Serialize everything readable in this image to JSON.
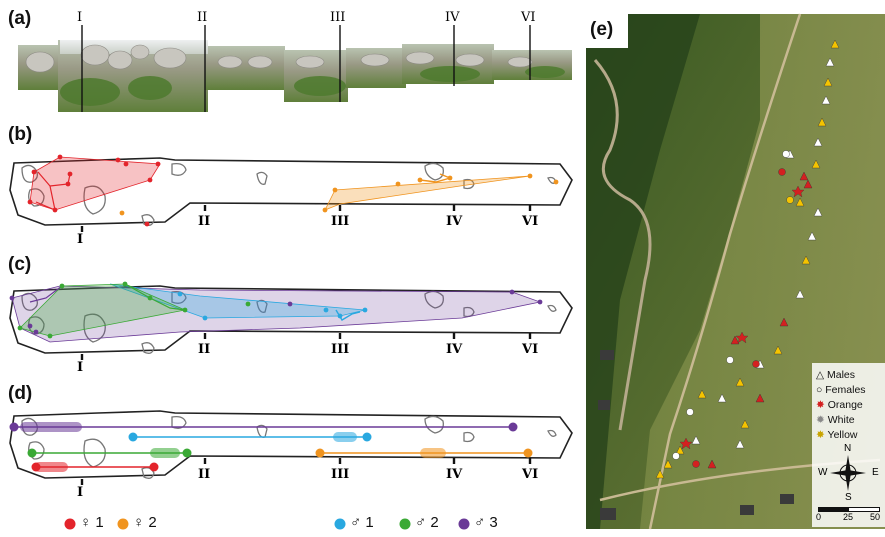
{
  "panel_labels": {
    "a": "(a)",
    "b": "(b)",
    "c": "(c)",
    "d": "(d)",
    "e": "(e)"
  },
  "sections": [
    "I",
    "II",
    "III",
    "IV",
    "VI"
  ],
  "colors": {
    "female1": "#e3242b",
    "female2": "#f0941f",
    "male1": "#29a8e0",
    "male2": "#3aa935",
    "male3": "#6a3a97",
    "yellow_marker": "#f5c400",
    "white_marker": "#ffffff",
    "orange_marker": "#d42020"
  },
  "legend_bottom": {
    "female1": "♀ 1",
    "female2": "♀ 2",
    "male1": "♂ 1",
    "male2": "♂ 2",
    "male3": "♂ 3"
  },
  "map_legend": {
    "males": "Males",
    "females": "Females",
    "orange": "Orange",
    "white": "White",
    "yellow": "Yellow",
    "compass": {
      "n": "N",
      "s": "S",
      "e": "E",
      "w": "W"
    },
    "scale": {
      "start": "0",
      "mid": "25",
      "end": "50"
    }
  },
  "icons": [
    "triangle-icon",
    "circle-icon",
    "star-icon",
    "compass-icon"
  ]
}
